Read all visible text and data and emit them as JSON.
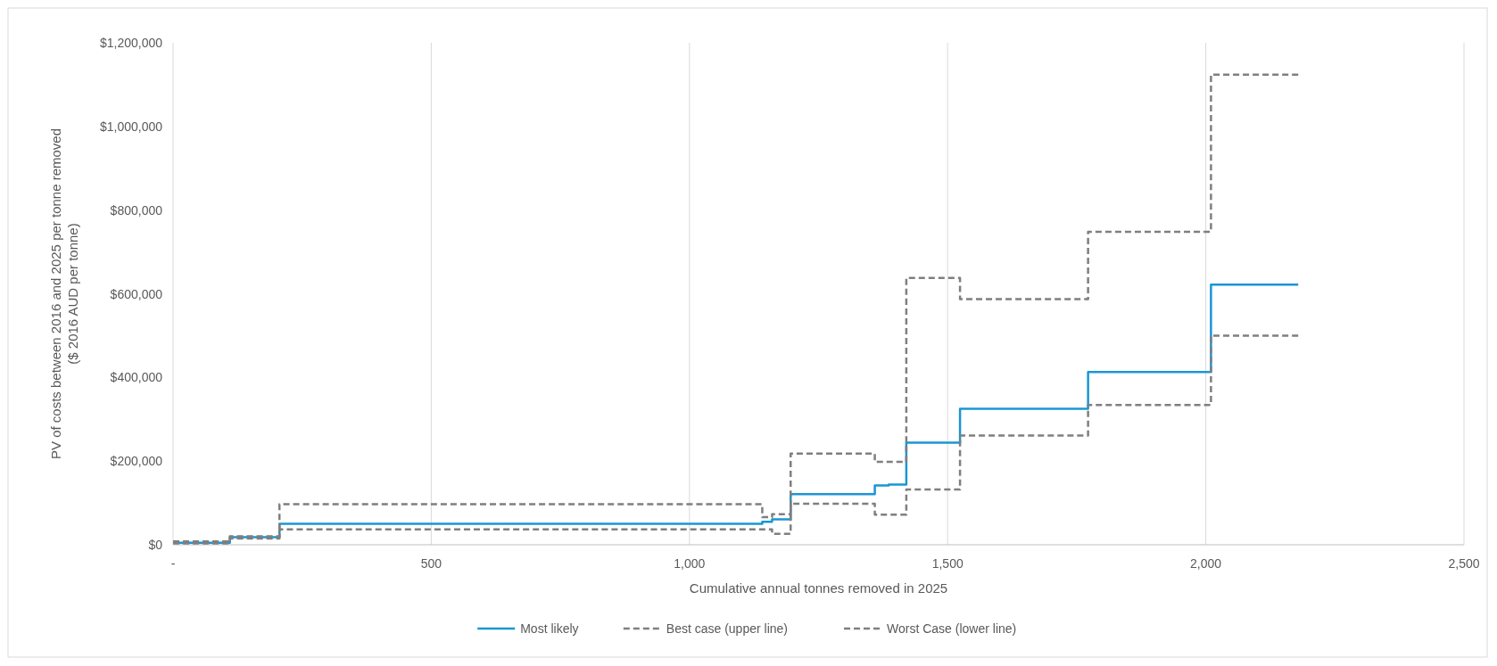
{
  "chart_data": {
    "type": "step",
    "xlabel": "Cumulative annual tonnes removed in 2025",
    "ylabel": "PV of costs between 2016 and 2025 per tonne removed ($ 2016 AUD per tonne)",
    "xlim": [
      0,
      2500
    ],
    "xticks": [
      {
        "value": 0,
        "label": "-"
      },
      {
        "value": 500,
        "label": "500"
      },
      {
        "value": 1000,
        "label": "1,000"
      },
      {
        "value": 1500,
        "label": "1,500"
      },
      {
        "value": 2000,
        "label": "2,000"
      },
      {
        "value": 2500,
        "label": "2,500"
      }
    ],
    "ylim": [
      0,
      1200000
    ],
    "yticks": [
      {
        "value": 0,
        "label": "$0"
      },
      {
        "value": 200000,
        "label": "$200,000"
      },
      {
        "value": 400000,
        "label": "$400,000"
      },
      {
        "value": 600000,
        "label": "$600,000"
      },
      {
        "value": 800000,
        "label": "$800,000"
      },
      {
        "value": 1000000,
        "label": "$1,000,000"
      },
      {
        "value": 1200000,
        "label": "$1,200,000"
      }
    ],
    "grid": "x",
    "legend": "bottom",
    "series": [
      {
        "name": "Most likely",
        "color": "#1a96d4",
        "line_style": "solid",
        "x": [
          0,
          110,
          206,
          1141,
          1160,
          1196,
          1359,
          1386,
          1420,
          1524,
          1772,
          2010,
          2179
        ],
        "values": [
          5000,
          18000,
          50000,
          55000,
          61000,
          121000,
          142000,
          144000,
          244000,
          325000,
          413000,
          622000,
          622000
        ]
      },
      {
        "name": "Best case (upper line)",
        "color": "#7f7f7f",
        "line_style": "dashed",
        "x": [
          0,
          110,
          206,
          1141,
          1160,
          1196,
          1359,
          1420,
          1524,
          1772,
          2010,
          2179
        ],
        "values": [
          8000,
          20000,
          97000,
          66000,
          73000,
          218000,
          198000,
          638000,
          587000,
          748000,
          1124000,
          1124000
        ]
      },
      {
        "name": "Worst Case (lower line)",
        "color": "#7f7f7f",
        "line_style": "dashed",
        "x": [
          0,
          110,
          206,
          1160,
          1196,
          1359,
          1420,
          1524,
          1772,
          2010,
          2179
        ],
        "values": [
          3000,
          15000,
          37000,
          26000,
          98000,
          72000,
          132000,
          261000,
          334000,
          500000,
          500000
        ]
      }
    ]
  }
}
